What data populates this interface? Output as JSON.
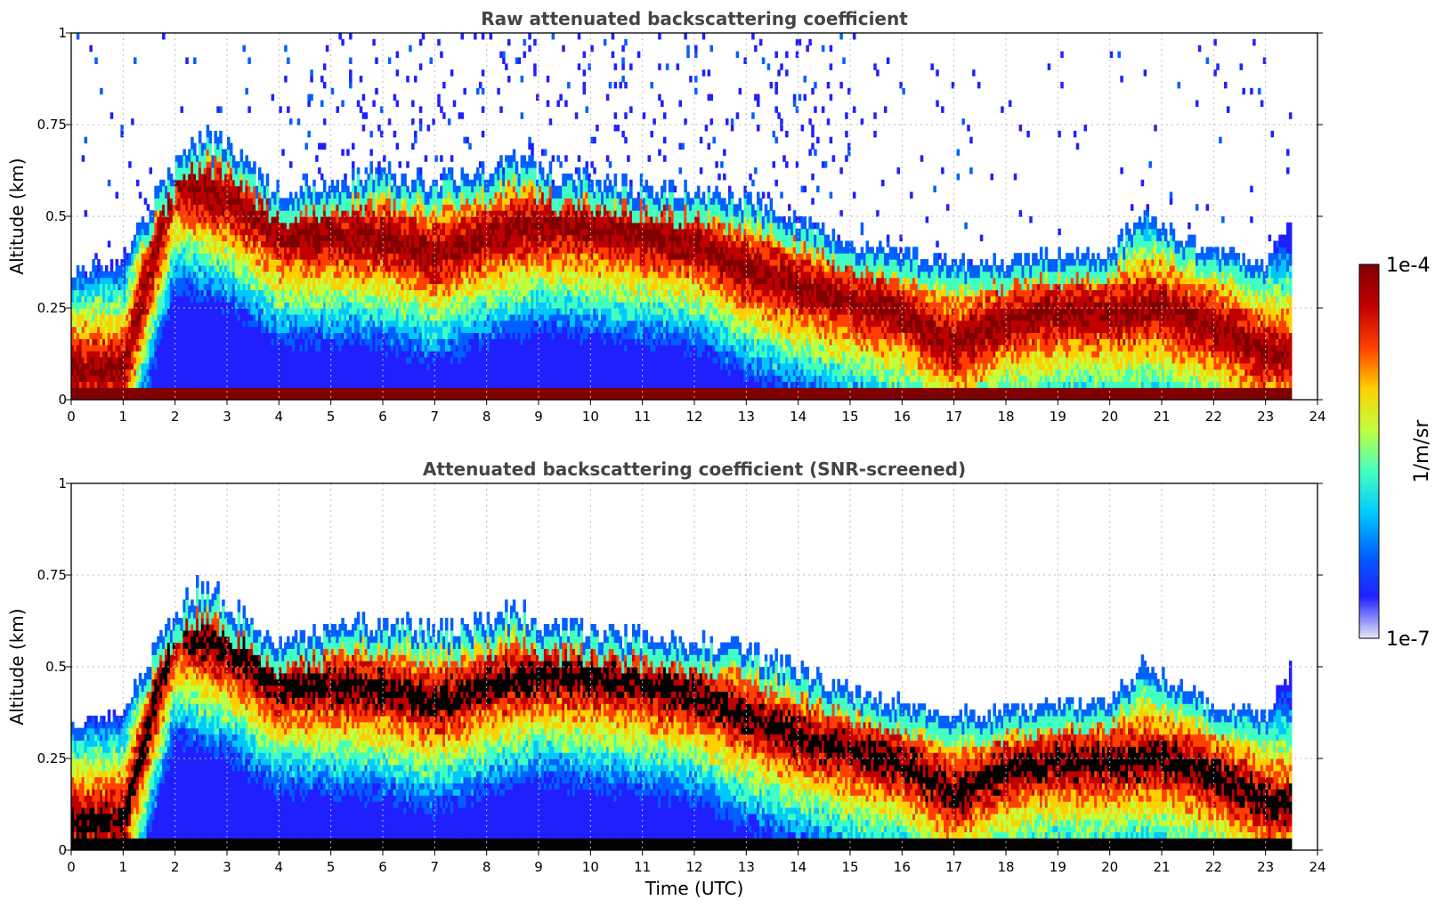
{
  "chart_data": [
    {
      "type": "heatmap",
      "title": "Raw attenuated backscattering coefficient",
      "xlabel": "",
      "ylabel": "Altitude (km)",
      "xlim": [
        0,
        24
      ],
      "ylim": [
        0,
        1
      ],
      "xticks": [
        "0",
        "1",
        "2",
        "3",
        "4",
        "5",
        "6",
        "7",
        "8",
        "9",
        "10",
        "11",
        "12",
        "13",
        "14",
        "15",
        "16",
        "17",
        "18",
        "19",
        "20",
        "21",
        "22",
        "23",
        "24"
      ],
      "yticks": [
        "0",
        "0.25",
        "0.5",
        "0.75",
        "1"
      ],
      "grid": true,
      "screened": false,
      "data_end_hour": 23.5,
      "layer_top_km": [
        {
          "t": 0.0,
          "h": 0.34
        },
        {
          "t": 1.0,
          "h": 0.38
        },
        {
          "t": 1.8,
          "h": 0.6
        },
        {
          "t": 2.5,
          "h": 0.72
        },
        {
          "t": 3.0,
          "h": 0.68
        },
        {
          "t": 3.5,
          "h": 0.62
        },
        {
          "t": 4.0,
          "h": 0.56
        },
        {
          "t": 5.0,
          "h": 0.6
        },
        {
          "t": 6.0,
          "h": 0.62
        },
        {
          "t": 7.0,
          "h": 0.6
        },
        {
          "t": 8.0,
          "h": 0.62
        },
        {
          "t": 8.5,
          "h": 0.66
        },
        {
          "t": 9.0,
          "h": 0.62
        },
        {
          "t": 10.0,
          "h": 0.6
        },
        {
          "t": 11.0,
          "h": 0.58
        },
        {
          "t": 12.0,
          "h": 0.57
        },
        {
          "t": 13.0,
          "h": 0.55
        },
        {
          "t": 14.0,
          "h": 0.49
        },
        {
          "t": 15.0,
          "h": 0.43
        },
        {
          "t": 16.0,
          "h": 0.4
        },
        {
          "t": 17.0,
          "h": 0.37
        },
        {
          "t": 18.0,
          "h": 0.38
        },
        {
          "t": 19.0,
          "h": 0.4
        },
        {
          "t": 20.0,
          "h": 0.4
        },
        {
          "t": 20.7,
          "h": 0.52
        },
        {
          "t": 21.0,
          "h": 0.47
        },
        {
          "t": 22.0,
          "h": 0.4
        },
        {
          "t": 23.0,
          "h": 0.37
        },
        {
          "t": 23.5,
          "h": 0.5
        }
      ],
      "layer_peak_km": [
        {
          "t": 0.0,
          "h": 0.08
        },
        {
          "t": 1.0,
          "h": 0.08
        },
        {
          "t": 2.0,
          "h": 0.6
        },
        {
          "t": 3.0,
          "h": 0.55
        },
        {
          "t": 4.0,
          "h": 0.45
        },
        {
          "t": 5.0,
          "h": 0.45
        },
        {
          "t": 6.0,
          "h": 0.44
        },
        {
          "t": 7.0,
          "h": 0.4
        },
        {
          "t": 8.0,
          "h": 0.45
        },
        {
          "t": 9.0,
          "h": 0.48
        },
        {
          "t": 10.0,
          "h": 0.47
        },
        {
          "t": 11.0,
          "h": 0.45
        },
        {
          "t": 12.0,
          "h": 0.43
        },
        {
          "t": 13.0,
          "h": 0.36
        },
        {
          "t": 14.0,
          "h": 0.31
        },
        {
          "t": 15.0,
          "h": 0.27
        },
        {
          "t": 16.0,
          "h": 0.24
        },
        {
          "t": 17.0,
          "h": 0.15
        },
        {
          "t": 18.0,
          "h": 0.22
        },
        {
          "t": 19.0,
          "h": 0.24
        },
        {
          "t": 20.0,
          "h": 0.24
        },
        {
          "t": 21.0,
          "h": 0.25
        },
        {
          "t": 22.0,
          "h": 0.2
        },
        {
          "t": 23.0,
          "h": 0.13
        },
        {
          "t": 23.5,
          "h": 0.12
        }
      ]
    },
    {
      "type": "heatmap",
      "title": "Attenuated backscattering coefficient (SNR-screened)",
      "xlabel": "Time (UTC)",
      "ylabel": "Altitude (km)",
      "xlim": [
        0,
        24
      ],
      "ylim": [
        0,
        1
      ],
      "xticks": [
        "0",
        "1",
        "2",
        "3",
        "4",
        "5",
        "6",
        "7",
        "8",
        "9",
        "10",
        "11",
        "12",
        "13",
        "14",
        "15",
        "16",
        "17",
        "18",
        "19",
        "20",
        "21",
        "22",
        "23",
        "24"
      ],
      "yticks": [
        "0",
        "0.25",
        "0.5",
        "0.75",
        "1"
      ],
      "grid": true,
      "screened": true,
      "data_end_hour": 23.5,
      "layer_top_km": [
        {
          "t": 0.0,
          "h": 0.34
        },
        {
          "t": 1.0,
          "h": 0.38
        },
        {
          "t": 1.8,
          "h": 0.6
        },
        {
          "t": 2.5,
          "h": 0.72
        },
        {
          "t": 3.0,
          "h": 0.68
        },
        {
          "t": 3.5,
          "h": 0.62
        },
        {
          "t": 4.0,
          "h": 0.56
        },
        {
          "t": 5.0,
          "h": 0.6
        },
        {
          "t": 6.0,
          "h": 0.62
        },
        {
          "t": 7.0,
          "h": 0.6
        },
        {
          "t": 8.0,
          "h": 0.62
        },
        {
          "t": 8.5,
          "h": 0.66
        },
        {
          "t": 9.0,
          "h": 0.62
        },
        {
          "t": 10.0,
          "h": 0.6
        },
        {
          "t": 11.0,
          "h": 0.58
        },
        {
          "t": 12.0,
          "h": 0.57
        },
        {
          "t": 13.0,
          "h": 0.55
        },
        {
          "t": 14.0,
          "h": 0.49
        },
        {
          "t": 15.0,
          "h": 0.43
        },
        {
          "t": 16.0,
          "h": 0.4
        },
        {
          "t": 17.0,
          "h": 0.37
        },
        {
          "t": 18.0,
          "h": 0.38
        },
        {
          "t": 19.0,
          "h": 0.4
        },
        {
          "t": 20.0,
          "h": 0.4
        },
        {
          "t": 20.7,
          "h": 0.52
        },
        {
          "t": 21.0,
          "h": 0.47
        },
        {
          "t": 22.0,
          "h": 0.4
        },
        {
          "t": 23.0,
          "h": 0.37
        },
        {
          "t": 23.5,
          "h": 0.5
        }
      ],
      "layer_peak_km": [
        {
          "t": 0.0,
          "h": 0.08
        },
        {
          "t": 1.0,
          "h": 0.08
        },
        {
          "t": 2.0,
          "h": 0.6
        },
        {
          "t": 3.0,
          "h": 0.55
        },
        {
          "t": 4.0,
          "h": 0.45
        },
        {
          "t": 5.0,
          "h": 0.45
        },
        {
          "t": 6.0,
          "h": 0.44
        },
        {
          "t": 7.0,
          "h": 0.4
        },
        {
          "t": 8.0,
          "h": 0.45
        },
        {
          "t": 9.0,
          "h": 0.48
        },
        {
          "t": 10.0,
          "h": 0.47
        },
        {
          "t": 11.0,
          "h": 0.45
        },
        {
          "t": 12.0,
          "h": 0.43
        },
        {
          "t": 13.0,
          "h": 0.36
        },
        {
          "t": 14.0,
          "h": 0.31
        },
        {
          "t": 15.0,
          "h": 0.27
        },
        {
          "t": 16.0,
          "h": 0.24
        },
        {
          "t": 17.0,
          "h": 0.15
        },
        {
          "t": 18.0,
          "h": 0.22
        },
        {
          "t": 19.0,
          "h": 0.24
        },
        {
          "t": 20.0,
          "h": 0.24
        },
        {
          "t": 21.0,
          "h": 0.25
        },
        {
          "t": 22.0,
          "h": 0.2
        },
        {
          "t": 23.0,
          "h": 0.13
        },
        {
          "t": 23.5,
          "h": 0.12
        }
      ]
    }
  ],
  "colorbar": {
    "label": "1/m/sr",
    "max_label": "1e-4",
    "min_label": "1e-7",
    "min_value": 1e-07,
    "max_value": 0.0001,
    "scale": "log",
    "colormap": "jet",
    "colors": [
      "#e8e8f8",
      "#2020ff",
      "#0060ff",
      "#00c8ff",
      "#40ffc0",
      "#c0ff40",
      "#ffd000",
      "#ff4000",
      "#c00000",
      "#800000"
    ],
    "screened_overflow_color": "#000000"
  }
}
